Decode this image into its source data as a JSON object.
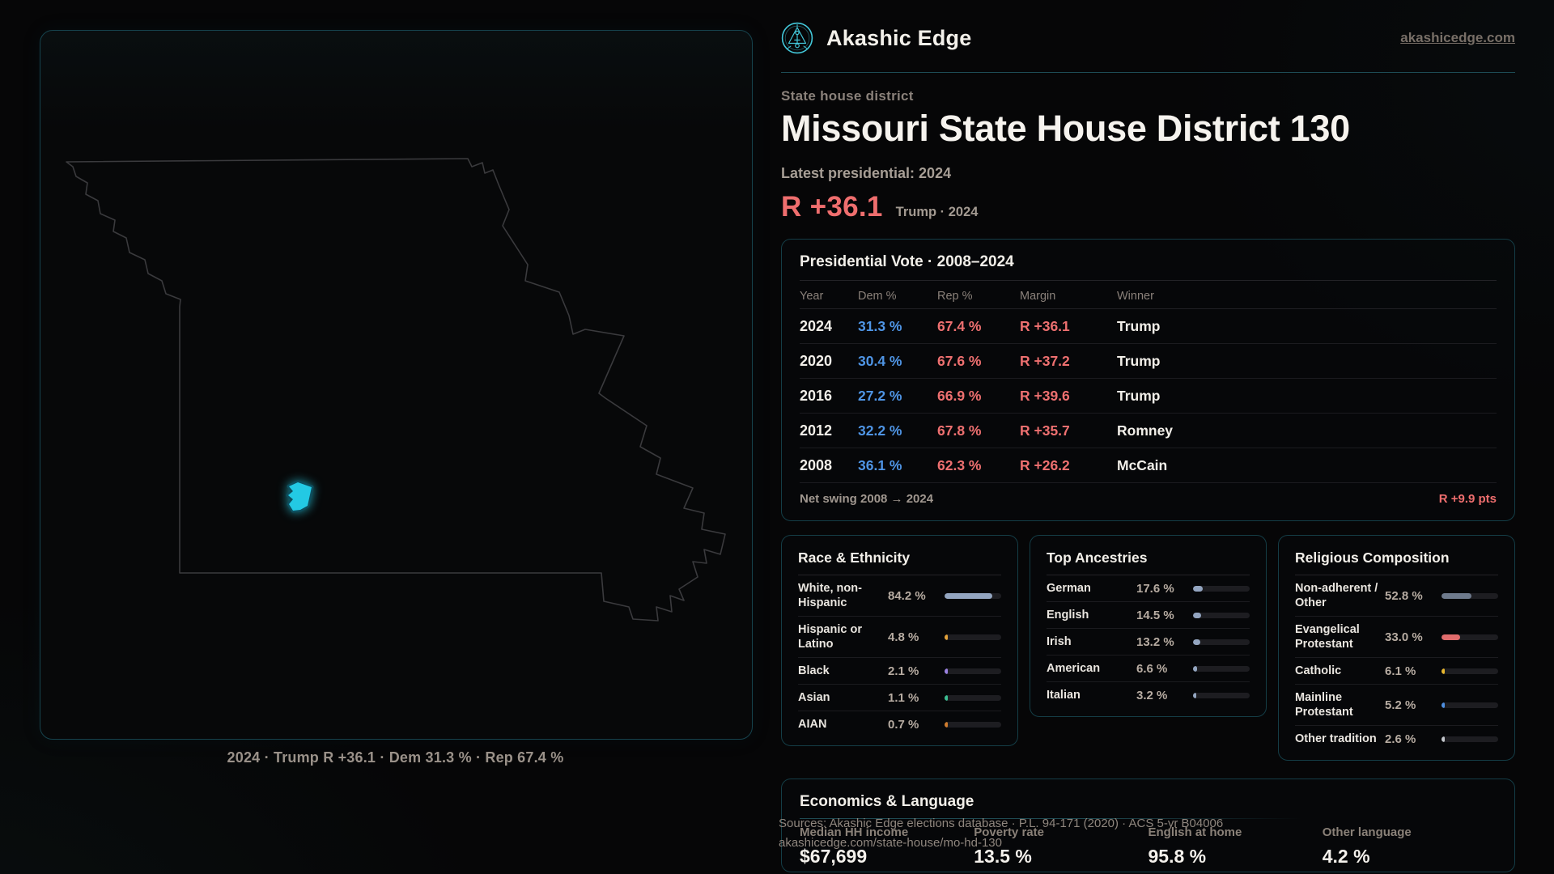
{
  "brand": {
    "name": "Akashic Edge",
    "domain": "akashicedge.com"
  },
  "icons": {
    "logo": "akashic-edge-emblem"
  },
  "colors": {
    "background": "#060607",
    "panel_border": "#16434d",
    "accent_cyan": "#29d8f0",
    "rep_red": "#ee7070",
    "dem_blue": "#4f95e5",
    "muted_text": "#9a9189"
  },
  "page": {
    "kicker": "State house district",
    "title": "Missouri State House District 130",
    "latest_label": "Latest presidential: 2024",
    "margin_big": "R +36.1",
    "margin_context": "Trump · 2024"
  },
  "map": {
    "caption": "2024 · Trump R +36.1 · Dem 31.3 % · Rep 67.4 %",
    "highlight": "District 130 (southwest Missouri)"
  },
  "presidential": {
    "title": "Presidential Vote · 2008–2024",
    "columns": [
      "Year",
      "Dem %",
      "Rep %",
      "Margin",
      "Winner"
    ],
    "rows": [
      {
        "year": "2024",
        "dem": "31.3 %",
        "rep": "67.4 %",
        "margin": "R +36.1",
        "winner": "Trump"
      },
      {
        "year": "2020",
        "dem": "30.4 %",
        "rep": "67.6 %",
        "margin": "R +37.2",
        "winner": "Trump"
      },
      {
        "year": "2016",
        "dem": "27.2 %",
        "rep": "66.9 %",
        "margin": "R +39.6",
        "winner": "Trump"
      },
      {
        "year": "2012",
        "dem": "32.2 %",
        "rep": "67.8 %",
        "margin": "R +35.7",
        "winner": "Romney"
      },
      {
        "year": "2008",
        "dem": "36.1 %",
        "rep": "62.3 %",
        "margin": "R +26.2",
        "winner": "McCain"
      }
    ],
    "net_swing_label": "Net swing 2008 → 2024",
    "net_swing_value": "R +9.9 pts"
  },
  "race": {
    "title": "Race & Ethnicity",
    "rows": [
      {
        "label": "White, non-Hispanic",
        "display": "84.2 %",
        "value": 84.2,
        "color": "#93a5c0"
      },
      {
        "label": "Hispanic or Latino",
        "display": "4.8 %",
        "value": 4.8,
        "color": "#e3a23a"
      },
      {
        "label": "Black",
        "display": "2.1 %",
        "value": 2.1,
        "color": "#9b82e2"
      },
      {
        "label": "Asian",
        "display": "1.1 %",
        "value": 1.1,
        "color": "#3cbf92"
      },
      {
        "label": "AIAN",
        "display": "0.7 %",
        "value": 0.7,
        "color": "#cf7c2e"
      }
    ]
  },
  "ancestries": {
    "title": "Top Ancestries",
    "rows": [
      {
        "label": "German",
        "display": "17.6 %",
        "value": 17.6,
        "color": "#93a5c0"
      },
      {
        "label": "English",
        "display": "14.5 %",
        "value": 14.5,
        "color": "#93a5c0"
      },
      {
        "label": "Irish",
        "display": "13.2 %",
        "value": 13.2,
        "color": "#93a5c0"
      },
      {
        "label": "American",
        "display": "6.6 %",
        "value": 6.6,
        "color": "#93a5c0"
      },
      {
        "label": "Italian",
        "display": "3.2 %",
        "value": 3.2,
        "color": "#93a5c0"
      }
    ]
  },
  "religion": {
    "title": "Religious Composition",
    "rows": [
      {
        "label": "Non-adherent / Other",
        "display": "52.8 %",
        "value": 52.8,
        "color": "#6e7a8c"
      },
      {
        "label": "Evangelical Protestant",
        "display": "33.0 %",
        "value": 33.0,
        "color": "#e06c6c"
      },
      {
        "label": "Catholic",
        "display": "6.1 %",
        "value": 6.1,
        "color": "#e7b62e"
      },
      {
        "label": "Mainline Protestant",
        "display": "5.2 %",
        "value": 5.2,
        "color": "#4e8fe0"
      },
      {
        "label": "Other tradition",
        "display": "2.6 %",
        "value": 2.6,
        "color": "#c4c7cc"
      }
    ]
  },
  "economics": {
    "title": "Economics & Language",
    "stats": [
      {
        "label": "Median HH income",
        "value": "$67,699"
      },
      {
        "label": "Poverty rate",
        "value": "13.5 %"
      },
      {
        "label": "English at home",
        "value": "95.8 %"
      },
      {
        "label": "Other language",
        "value": "4.2 %"
      }
    ]
  },
  "footer": {
    "line1": "Sources: Akashic Edge elections database · P.L. 94-171 (2020) · ACS 5-yr B04006",
    "line2": "akashicedge.com/state-house/mo-hd-130"
  },
  "chart_data": [
    {
      "type": "table",
      "title": "Presidential Vote · 2008–2024",
      "columns": [
        "Year",
        "Dem %",
        "Rep %",
        "Margin",
        "Winner"
      ],
      "rows": [
        [
          "2024",
          31.3,
          67.4,
          "R +36.1",
          "Trump"
        ],
        [
          "2020",
          30.4,
          67.6,
          "R +37.2",
          "Trump"
        ],
        [
          "2016",
          27.2,
          66.9,
          "R +39.6",
          "Trump"
        ],
        [
          "2012",
          32.2,
          67.8,
          "R +35.7",
          "Romney"
        ],
        [
          "2008",
          36.1,
          62.3,
          "R +26.2",
          "McCain"
        ]
      ],
      "footer": {
        "label": "Net swing 2008 → 2024",
        "value": "R +9.9 pts"
      }
    },
    {
      "type": "bar",
      "title": "Race & Ethnicity",
      "categories": [
        "White, non-Hispanic",
        "Hispanic or Latino",
        "Black",
        "Asian",
        "AIAN"
      ],
      "values": [
        84.2,
        4.8,
        2.1,
        1.1,
        0.7
      ],
      "xlabel": "",
      "ylabel": "Percent",
      "xlim": [
        0,
        100
      ],
      "unit": "%",
      "orientation": "horizontal"
    },
    {
      "type": "bar",
      "title": "Top Ancestries",
      "categories": [
        "German",
        "English",
        "Irish",
        "American",
        "Italian"
      ],
      "values": [
        17.6,
        14.5,
        13.2,
        6.6,
        3.2
      ],
      "xlabel": "",
      "ylabel": "Percent",
      "xlim": [
        0,
        100
      ],
      "unit": "%",
      "orientation": "horizontal"
    },
    {
      "type": "bar",
      "title": "Religious Composition",
      "categories": [
        "Non-adherent / Other",
        "Evangelical Protestant",
        "Catholic",
        "Mainline Protestant",
        "Other tradition"
      ],
      "values": [
        52.8,
        33.0,
        6.1,
        5.2,
        2.6
      ],
      "xlabel": "",
      "ylabel": "Percent",
      "xlim": [
        0,
        100
      ],
      "unit": "%",
      "orientation": "horizontal"
    },
    {
      "type": "table",
      "title": "Economics & Language",
      "columns": [
        "Median HH income",
        "Poverty rate",
        "English at home",
        "Other language"
      ],
      "rows": [
        [
          "$67,699",
          "13.5 %",
          "95.8 %",
          "4.2 %"
        ]
      ]
    }
  ]
}
